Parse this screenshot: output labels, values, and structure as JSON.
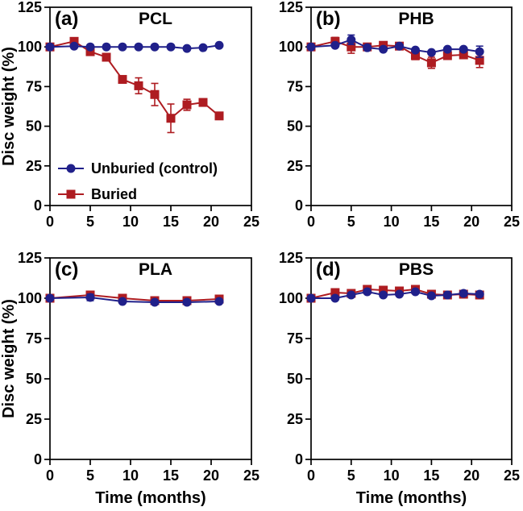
{
  "figure": {
    "type": "line",
    "xlabel": "Time (months)",
    "ylabel": "Disc weight (%)",
    "xlim": [
      0,
      25
    ],
    "ylim": [
      0,
      125
    ],
    "x_ticks": [
      0,
      5,
      10,
      15,
      20,
      25
    ],
    "y_ticks": [
      0,
      25,
      50,
      75,
      100,
      125
    ],
    "grid": false,
    "frame": "full-box",
    "legend": {
      "position": "inside-lower-left-of-panel-a",
      "items": [
        {
          "label": "Unburied (control)",
          "marker": "circle",
          "color": "#20208a"
        },
        {
          "label": "Buried",
          "marker": "square",
          "color": "#ae1c21"
        }
      ]
    }
  },
  "chart_data": [
    {
      "panel": "(a)",
      "title": "PCL",
      "type": "line",
      "x": [
        0,
        3,
        5,
        7,
        9,
        11,
        13,
        15,
        17,
        19,
        21
      ],
      "series": [
        {
          "name": "Unburied (control)",
          "marker": "circle",
          "color": "#20208a",
          "values": [
            100,
            100.5,
            100,
            100,
            100,
            100,
            100,
            100,
            99,
            99.5,
            101
          ],
          "errors": [
            0,
            0,
            0,
            0,
            0,
            0,
            0,
            0,
            0,
            0,
            0
          ]
        },
        {
          "name": "Buried",
          "marker": "square",
          "color": "#ae1c21",
          "values": [
            100,
            103.5,
            97,
            93.5,
            79.5,
            75.5,
            70,
            55,
            63.5,
            65,
            56.5
          ],
          "errors": [
            0,
            0,
            0,
            0,
            0,
            5,
            7,
            9,
            3.5,
            0,
            0
          ]
        }
      ]
    },
    {
      "panel": "(b)",
      "title": "PHB",
      "type": "line",
      "x": [
        0,
        3,
        5,
        7,
        9,
        11,
        13,
        15,
        17,
        19,
        21
      ],
      "series": [
        {
          "name": "Unburied (control)",
          "marker": "circle",
          "color": "#20208a",
          "values": [
            100,
            101,
            104.5,
            99.5,
            98.5,
            100.5,
            98,
            96.5,
            98.5,
            98.5,
            97
          ],
          "errors": [
            0,
            0,
            3,
            0,
            0,
            0,
            0,
            0,
            0,
            0,
            3.5
          ]
        },
        {
          "name": "Buried",
          "marker": "square",
          "color": "#ae1c21",
          "values": [
            100,
            103.5,
            100,
            100,
            101,
            100.5,
            94.5,
            90,
            94.5,
            95,
            91.5
          ],
          "errors": [
            0,
            2.5,
            4,
            0,
            0,
            0,
            2.5,
            3.5,
            0,
            0,
            4.5
          ]
        }
      ]
    },
    {
      "panel": "(c)",
      "title": "PLA",
      "type": "line",
      "x": [
        0,
        5,
        9,
        13,
        17,
        21
      ],
      "series": [
        {
          "name": "Unburied (control)",
          "marker": "circle",
          "color": "#20208a",
          "values": [
            100,
            100.5,
            98,
            97.5,
            97.5,
            98
          ],
          "errors": [
            0,
            2,
            0,
            0,
            0,
            0
          ]
        },
        {
          "name": "Buried",
          "marker": "square",
          "color": "#ae1c21",
          "values": [
            100,
            102,
            100,
            98.5,
            98.5,
            99.5
          ],
          "errors": [
            0,
            1,
            0,
            0,
            0,
            0
          ]
        }
      ]
    },
    {
      "panel": "(d)",
      "title": "PBS",
      "type": "line",
      "x": [
        0,
        3,
        5,
        7,
        9,
        11,
        13,
        15,
        17,
        19,
        21
      ],
      "series": [
        {
          "name": "Unburied (control)",
          "marker": "circle",
          "color": "#20208a",
          "values": [
            100,
            100,
            102,
            104,
            102,
            102.5,
            104,
            101.5,
            102,
            103,
            102.5
          ],
          "errors": [
            0,
            0,
            0,
            0,
            0,
            0,
            0,
            0,
            0,
            1.5,
            0
          ]
        },
        {
          "name": "Buried",
          "marker": "square",
          "color": "#ae1c21",
          "values": [
            100,
            103.5,
            103,
            105.5,
            105,
            104.5,
            105.5,
            102.5,
            102,
            102.5,
            102
          ],
          "errors": [
            0,
            0,
            0,
            0,
            0,
            0,
            0,
            0,
            0,
            2,
            0
          ]
        }
      ]
    }
  ]
}
